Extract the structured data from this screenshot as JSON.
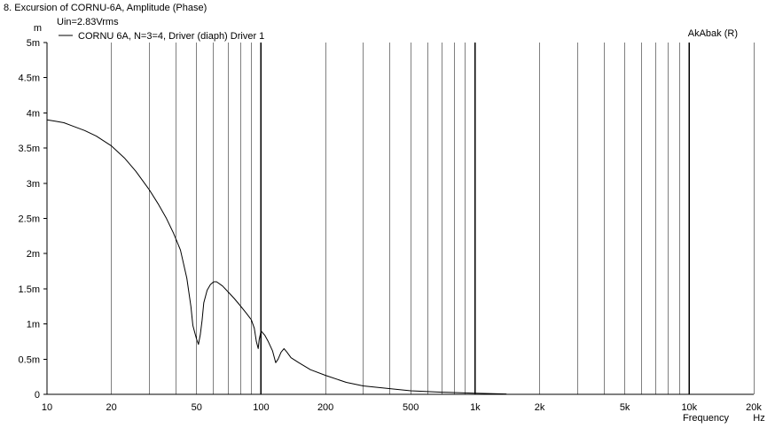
{
  "window": {
    "title": "8. Excursion of CORNU-6A, Amplitude (Phase)",
    "brand": "AkAbak (R)"
  },
  "colors": {
    "background": "#ffffff",
    "axes": "#000000",
    "grid": "#000000",
    "trace": "#000000"
  },
  "chart_data": {
    "type": "line",
    "title": "8. Excursion of CORNU-6A, Amplitude (Phase)",
    "subtitle": "Uin=2.83Vrms",
    "xlabel": "Frequency",
    "x_unit": "Hz",
    "ylabel": "m",
    "xscale": "log",
    "xlim": [
      10,
      20000
    ],
    "ylim": [
      0,
      0.005
    ],
    "grid": true,
    "legend_position": "top-left",
    "x_ticks": [
      {
        "value": 10,
        "label": "10"
      },
      {
        "value": 20,
        "label": "20"
      },
      {
        "value": 50,
        "label": "50"
      },
      {
        "value": 100,
        "label": "100"
      },
      {
        "value": 200,
        "label": "200"
      },
      {
        "value": 500,
        "label": "500"
      },
      {
        "value": 1000,
        "label": "1k"
      },
      {
        "value": 2000,
        "label": "2k"
      },
      {
        "value": 5000,
        "label": "5k"
      },
      {
        "value": 10000,
        "label": "10k"
      },
      {
        "value": 20000,
        "label": "20k"
      }
    ],
    "y_ticks": [
      {
        "value": 0,
        "label": "0"
      },
      {
        "value": 0.0005,
        "label": "0.5m"
      },
      {
        "value": 0.001,
        "label": "1m"
      },
      {
        "value": 0.0015,
        "label": "1.5m"
      },
      {
        "value": 0.002,
        "label": "2m"
      },
      {
        "value": 0.0025,
        "label": "2.5m"
      },
      {
        "value": 0.003,
        "label": "3m"
      },
      {
        "value": 0.0035,
        "label": "3.5m"
      },
      {
        "value": 0.004,
        "label": "4m"
      },
      {
        "value": 0.0045,
        "label": "4.5m"
      },
      {
        "value": 0.005,
        "label": "5m"
      }
    ],
    "series": [
      {
        "name": "CORNU 6A, N=3=4, Driver (diaph) Driver 1",
        "x": [
          10,
          11,
          12,
          13,
          15,
          17,
          20,
          23,
          26,
          30,
          33,
          36,
          39,
          42,
          45,
          47,
          48,
          49,
          50,
          51,
          52,
          53,
          54,
          56,
          58,
          60,
          62,
          66,
          70,
          75,
          80,
          85,
          90,
          93,
          95,
          97,
          98,
          100,
          104,
          108,
          113,
          117,
          120,
          124,
          128,
          132,
          138,
          150,
          170,
          200,
          250,
          300,
          400,
          500,
          700,
          1000,
          1400
        ],
        "y": [
          0.0039,
          0.00388,
          0.00386,
          0.00382,
          0.00375,
          0.00367,
          0.00353,
          0.00336,
          0.00317,
          0.00291,
          0.00271,
          0.00251,
          0.00229,
          0.00205,
          0.00165,
          0.00125,
          0.00098,
          0.00088,
          0.00078,
          0.00071,
          0.00085,
          0.00105,
          0.0013,
          0.00148,
          0.00156,
          0.0016,
          0.0016,
          0.00154,
          0.00146,
          0.00136,
          0.00126,
          0.00116,
          0.00106,
          0.00094,
          0.00075,
          0.00065,
          0.00078,
          0.0009,
          0.00084,
          0.00075,
          0.00062,
          0.00045,
          0.0005,
          0.0006,
          0.00065,
          0.0006,
          0.00052,
          0.00045,
          0.00035,
          0.00027,
          0.00017,
          0.00012,
          8e-05,
          5e-05,
          3e-05,
          1.5e-05,
          5e-06
        ]
      }
    ]
  }
}
